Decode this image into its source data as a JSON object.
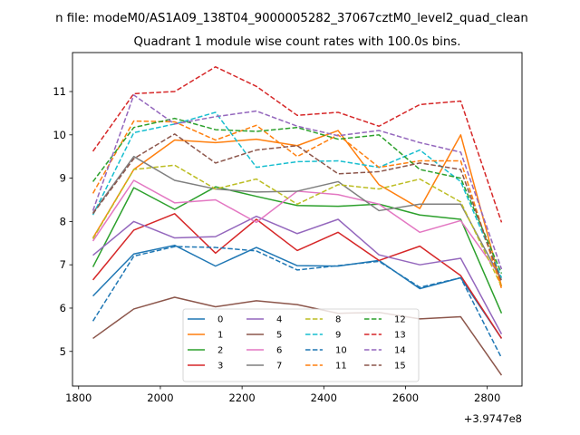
{
  "suptitle": "n file: modeM0/AS1A09_138T04_9000005282_37067cztM0_level2_quad_clean",
  "chart_data": {
    "type": "line",
    "title": "Quadrant 1 module wise count rates with 100.0s bins.",
    "xlabel": "",
    "ylabel": "",
    "x_offset_label": "+3.9747e8",
    "xlim": [
      1785,
      2885
    ],
    "ylim": [
      4.2,
      11.9
    ],
    "xticks": [
      1800,
      2000,
      2200,
      2400,
      2600,
      2800
    ],
    "xtick_labels": [
      "1800",
      "2000",
      "2200",
      "2400",
      "2600",
      "2800"
    ],
    "yticks": [
      5,
      6,
      7,
      8,
      9,
      10,
      11
    ],
    "ytick_labels": [
      "5",
      "6",
      "7",
      "8",
      "9",
      "10",
      "11"
    ],
    "x": [
      1835,
      1935,
      2035,
      2135,
      2235,
      2335,
      2435,
      2535,
      2635,
      2735,
      2835
    ],
    "legend_position": "lower center",
    "series": [
      {
        "name": "0",
        "color": "#1f77b4",
        "dash": "solid",
        "values": [
          6.28,
          7.25,
          7.45,
          6.97,
          7.4,
          6.98,
          6.97,
          7.1,
          6.45,
          6.7,
          5.3
        ]
      },
      {
        "name": "1",
        "color": "#ff7f0e",
        "dash": "solid",
        "values": [
          7.62,
          9.2,
          9.88,
          9.82,
          9.9,
          9.75,
          10.1,
          8.85,
          8.3,
          10.0,
          6.5
        ]
      },
      {
        "name": "2",
        "color": "#2ca02c",
        "dash": "solid",
        "values": [
          6.95,
          8.78,
          8.28,
          8.8,
          8.58,
          8.37,
          8.35,
          8.4,
          8.15,
          8.05,
          5.88
        ]
      },
      {
        "name": "3",
        "color": "#d62728",
        "dash": "solid",
        "values": [
          6.65,
          7.8,
          8.18,
          7.27,
          8.05,
          7.33,
          7.75,
          7.1,
          7.43,
          6.75,
          5.3
        ]
      },
      {
        "name": "4",
        "color": "#9467bd",
        "dash": "solid",
        "values": [
          7.22,
          8.0,
          7.62,
          7.65,
          8.12,
          7.72,
          8.05,
          7.23,
          7.0,
          7.15,
          5.4
        ]
      },
      {
        "name": "5",
        "color": "#8c564b",
        "dash": "solid",
        "values": [
          5.3,
          5.98,
          6.25,
          6.03,
          6.17,
          6.08,
          5.88,
          5.9,
          5.75,
          5.8,
          4.45
        ]
      },
      {
        "name": "6",
        "color": "#e377c2",
        "dash": "solid",
        "values": [
          7.55,
          8.95,
          8.43,
          8.5,
          7.98,
          8.7,
          8.62,
          8.4,
          7.75,
          8.02,
          6.7
        ]
      },
      {
        "name": "7",
        "color": "#7f7f7f",
        "dash": "solid",
        "values": [
          8.2,
          9.5,
          8.95,
          8.75,
          8.68,
          8.7,
          8.92,
          8.25,
          8.4,
          8.4,
          6.65
        ]
      },
      {
        "name": "8",
        "color": "#bcbd22",
        "dash": "dashed",
        "values": [
          7.6,
          9.2,
          9.3,
          8.75,
          8.98,
          8.4,
          8.85,
          8.75,
          8.98,
          8.45,
          6.5
        ]
      },
      {
        "name": "9",
        "color": "#17becf",
        "dash": "dashed",
        "values": [
          8.15,
          10.05,
          10.25,
          10.52,
          9.25,
          9.38,
          9.4,
          9.25,
          9.65,
          8.92,
          6.7
        ]
      },
      {
        "name": "10",
        "color": "#1f77b4",
        "dash": "dashed",
        "values": [
          5.7,
          7.2,
          7.42,
          7.4,
          7.32,
          6.88,
          6.98,
          7.08,
          6.48,
          6.7,
          4.85
        ]
      },
      {
        "name": "11",
        "color": "#ff7f0e",
        "dash": "dashed",
        "values": [
          8.65,
          10.32,
          10.3,
          9.88,
          10.22,
          9.5,
          10.0,
          9.25,
          9.4,
          9.4,
          6.45
        ]
      },
      {
        "name": "12",
        "color": "#2ca02c",
        "dash": "dashed",
        "values": [
          8.92,
          10.17,
          10.38,
          10.12,
          10.08,
          10.17,
          9.9,
          10.0,
          9.2,
          9.0,
          6.8
        ]
      },
      {
        "name": "13",
        "color": "#d62728",
        "dash": "dashed",
        "values": [
          9.62,
          10.95,
          11.0,
          11.57,
          11.12,
          10.45,
          10.52,
          10.2,
          10.7,
          10.78,
          7.98
        ]
      },
      {
        "name": "14",
        "color": "#9467bd",
        "dash": "dashed",
        "values": [
          8.25,
          10.92,
          10.25,
          10.42,
          10.55,
          10.2,
          9.98,
          10.1,
          9.82,
          9.6,
          6.9
        ]
      },
      {
        "name": "15",
        "color": "#8c564b",
        "dash": "dashed",
        "values": [
          8.18,
          9.45,
          10.02,
          9.35,
          9.65,
          9.75,
          9.1,
          9.15,
          9.35,
          9.2,
          6.6
        ]
      }
    ]
  }
}
